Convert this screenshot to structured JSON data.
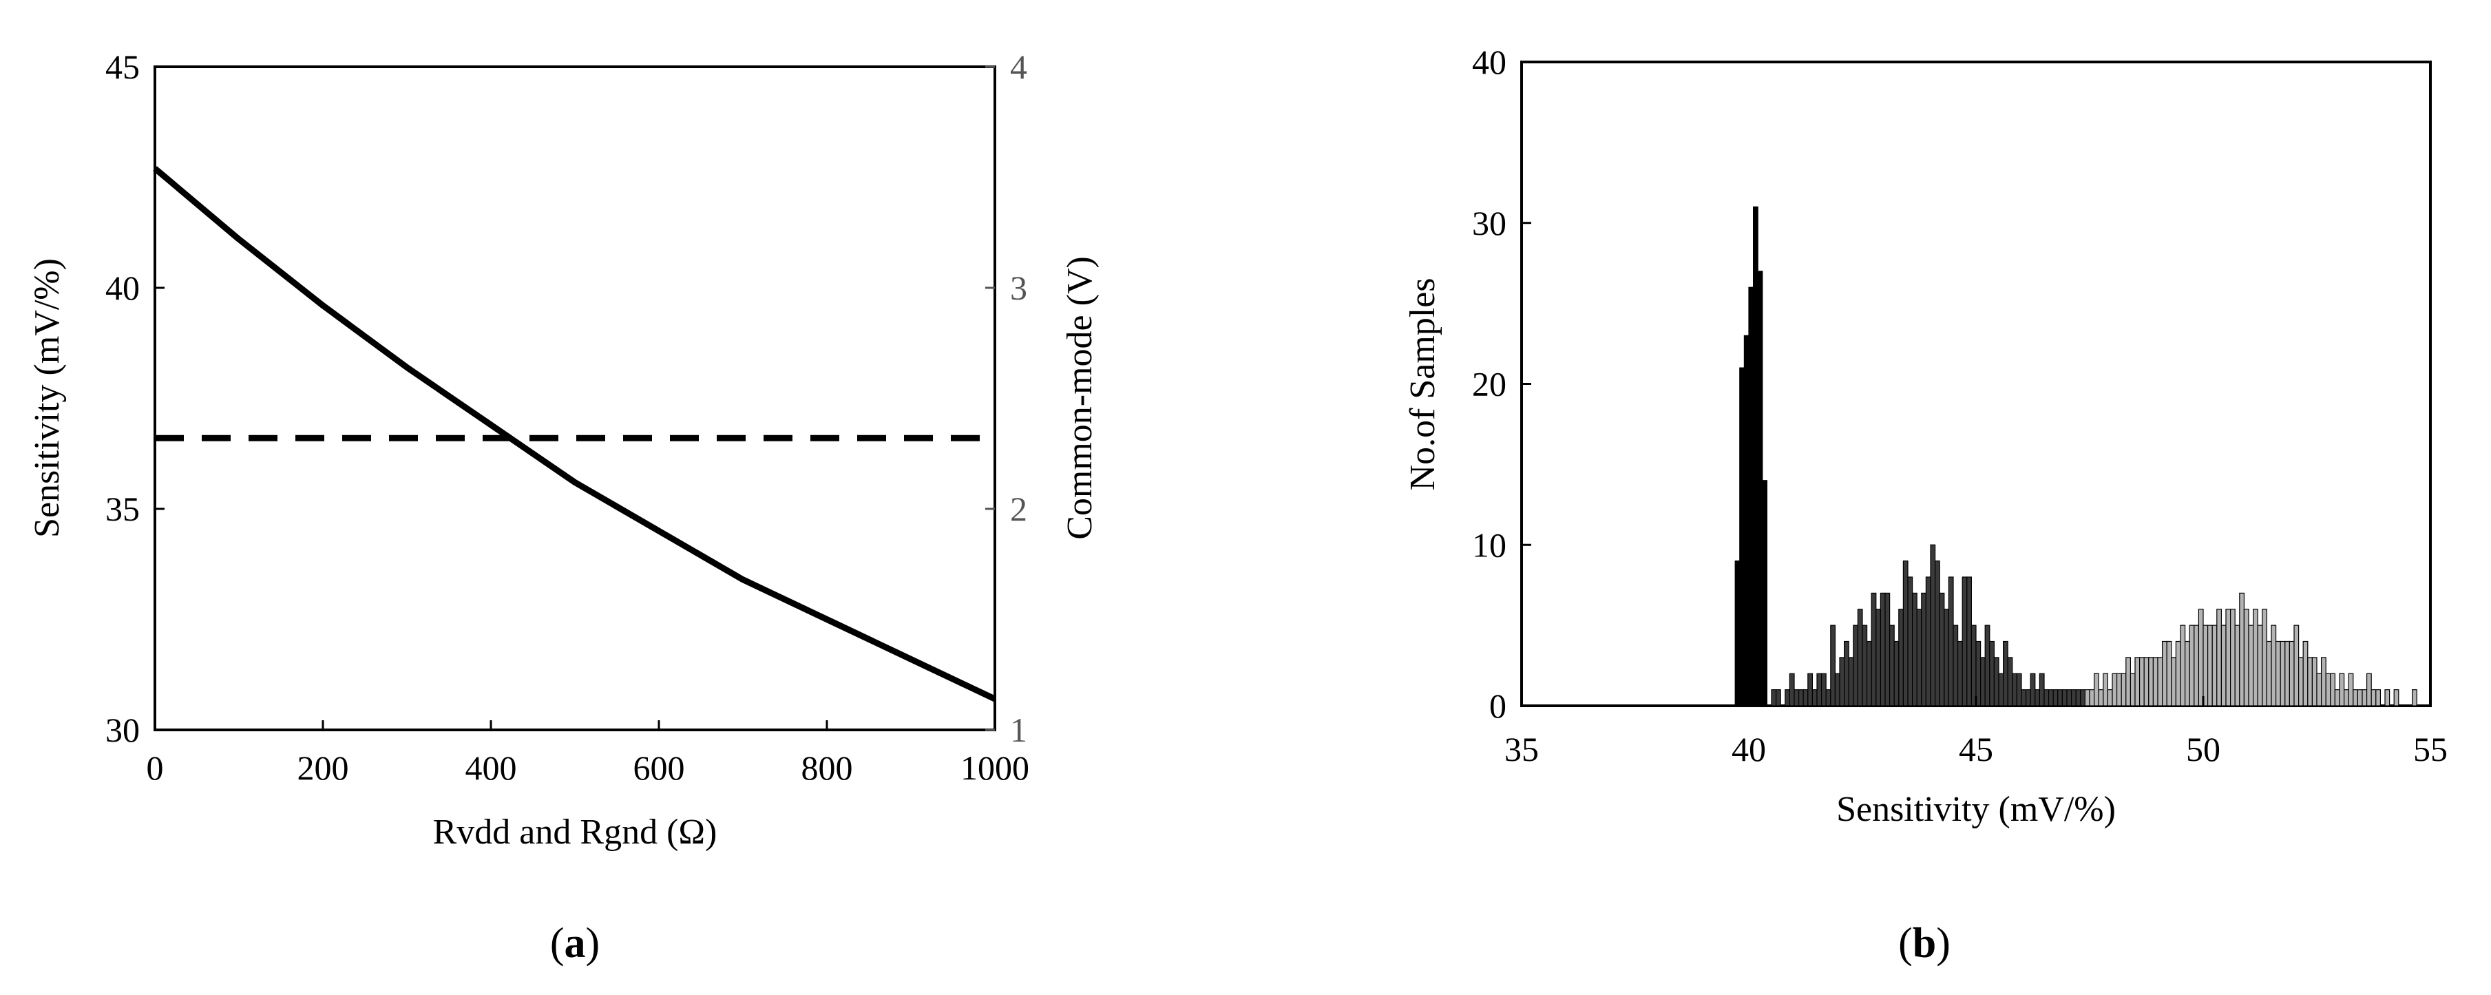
{
  "chart_data": [
    {
      "type": "line",
      "panel_label": "a",
      "xlabel": "Rvdd and Rgnd (Ω)",
      "ylabel": "Sensitivity (mV/%)",
      "y2label": "Common-mode (V)",
      "xlim": [
        0,
        1000
      ],
      "ylim": [
        30,
        45
      ],
      "y2lim": [
        1,
        4
      ],
      "xticks": [
        "0",
        "200",
        "400",
        "600",
        "800",
        "1000"
      ],
      "yticks": [
        "30",
        "35",
        "40",
        "45"
      ],
      "y2ticks": [
        "1",
        "2",
        "3",
        "4"
      ],
      "grid": false,
      "series": [
        {
          "axis": "left",
          "style": "solid",
          "color": "#000000",
          "x": [
            0,
            100,
            200,
            300,
            400,
            500,
            600,
            700,
            800,
            900,
            1000
          ],
          "y": [
            42.7,
            41.1,
            39.6,
            38.2,
            36.9,
            35.6,
            34.5,
            33.4,
            32.5,
            31.6,
            30.7
          ]
        },
        {
          "axis": "right",
          "style": "dashed",
          "color": "#000000",
          "x": [
            0,
            1000
          ],
          "y": [
            2.32,
            2.32
          ]
        }
      ]
    },
    {
      "type": "bar",
      "panel_label": "b",
      "xlabel": "Sensitivity (mV/%)",
      "ylabel": "No.of Samples",
      "xlim": [
        35,
        55
      ],
      "ylim": [
        0,
        40
      ],
      "xticks": [
        "35",
        "40",
        "45",
        "50",
        "55"
      ],
      "yticks": [
        "0",
        "10",
        "20",
        "30",
        "40"
      ],
      "grid": false,
      "bin_width": 0.1,
      "series": [
        {
          "color": "#000000",
          "x": [
            39.7,
            39.8,
            39.9,
            40.0,
            40.1,
            40.2,
            40.3
          ],
          "values": [
            9,
            21,
            23,
            26,
            31,
            27,
            14
          ]
        },
        {
          "color": "#3a3a3a",
          "x": [
            40.5,
            40.6,
            40.7,
            40.8,
            40.9,
            41.0,
            41.1,
            41.2,
            41.3,
            41.4,
            41.5,
            41.6,
            41.7,
            41.8,
            41.9,
            42.0,
            42.1,
            42.2,
            42.3,
            42.4,
            42.5,
            42.6,
            42.7,
            42.8,
            42.9,
            43.0,
            43.1,
            43.2,
            43.3,
            43.4,
            43.5,
            43.6,
            43.7,
            43.8,
            43.9,
            44.0,
            44.1,
            44.2,
            44.3,
            44.4,
            44.5,
            44.6,
            44.7,
            44.8,
            44.9,
            45.0,
            45.1,
            45.2,
            45.3,
            45.4,
            45.5,
            45.6,
            45.7,
            45.8,
            45.9,
            46.0,
            46.1,
            46.2,
            46.3,
            46.4,
            46.5,
            46.6,
            46.7,
            46.8,
            46.9,
            47.0,
            47.1,
            47.2,
            47.3,
            47.4
          ],
          "values": [
            1,
            1,
            0,
            1,
            2,
            1,
            1,
            1,
            2,
            1,
            2,
            2,
            1,
            5,
            2,
            3,
            4,
            3,
            5,
            6,
            5,
            4,
            7,
            6,
            7,
            7,
            5,
            4,
            6,
            9,
            8,
            7,
            6,
            7,
            8,
            10,
            9,
            7,
            6,
            8,
            5,
            4,
            8,
            8,
            5,
            4,
            3,
            5,
            4,
            3,
            2,
            4,
            3,
            2,
            2,
            1,
            1,
            2,
            1,
            2,
            1,
            1,
            1,
            1,
            1,
            1,
            1,
            1,
            1,
            0
          ]
        },
        {
          "color": "#b4b4b4",
          "x": [
            47.4,
            47.5,
            47.6,
            47.7,
            47.8,
            47.9,
            48.0,
            48.1,
            48.2,
            48.3,
            48.4,
            48.5,
            48.6,
            48.7,
            48.8,
            48.9,
            49.0,
            49.1,
            49.2,
            49.3,
            49.4,
            49.5,
            49.6,
            49.7,
            49.8,
            49.9,
            50.0,
            50.1,
            50.2,
            50.3,
            50.4,
            50.5,
            50.6,
            50.7,
            50.8,
            50.9,
            51.0,
            51.1,
            51.2,
            51.3,
            51.4,
            51.5,
            51.6,
            51.7,
            51.8,
            51.9,
            52.0,
            52.1,
            52.2,
            52.3,
            52.4,
            52.5,
            52.6,
            52.7,
            52.8,
            52.9,
            53.0,
            53.1,
            53.2,
            53.3,
            53.4,
            53.5,
            53.6,
            53.7,
            53.8,
            53.9,
            54.0,
            54.1,
            54.2,
            54.3,
            54.4,
            54.5,
            54.6
          ],
          "values": [
            1,
            1,
            2,
            1,
            2,
            1,
            2,
            2,
            2,
            3,
            2,
            3,
            3,
            3,
            3,
            3,
            3,
            4,
            4,
            3,
            4,
            5,
            4,
            5,
            5,
            6,
            5,
            5,
            5,
            6,
            5,
            6,
            6,
            5,
            7,
            6,
            5,
            6,
            5,
            6,
            4,
            5,
            4,
            4,
            4,
            4,
            5,
            3,
            4,
            3,
            3,
            2,
            3,
            2,
            2,
            1,
            2,
            1,
            2,
            1,
            1,
            1,
            2,
            1,
            1,
            0,
            1,
            0,
            1,
            0,
            0,
            0,
            1
          ]
        }
      ]
    }
  ]
}
